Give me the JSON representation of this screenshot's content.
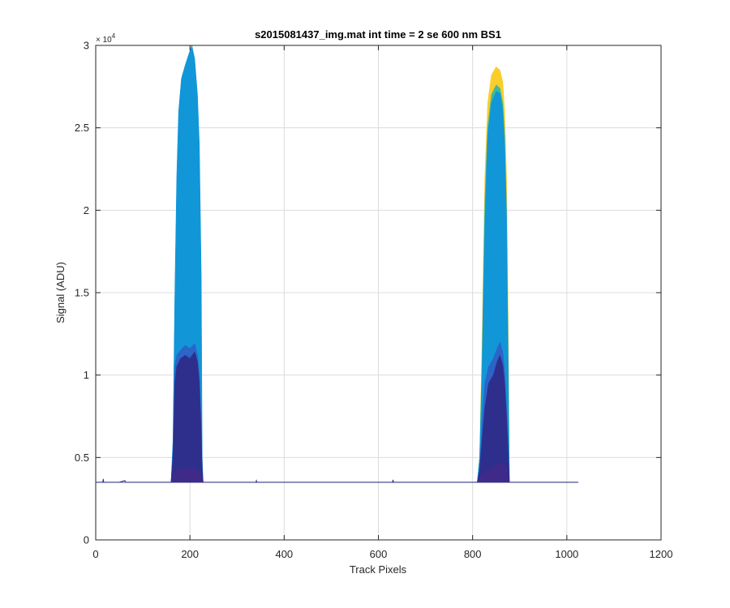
{
  "chart_data": {
    "type": "area",
    "title": "s2015081437_img.mat int time = 2 se  600 nm BS1",
    "xlabel": "Track Pixels",
    "ylabel": "Signal (ADU)",
    "xlim": [
      0,
      1200
    ],
    "ylim": [
      0,
      30000
    ],
    "x_ticks": [
      0,
      200,
      400,
      600,
      800,
      1000,
      1200
    ],
    "y_ticks": [
      0,
      5000,
      10000,
      15000,
      20000,
      25000,
      30000
    ],
    "y_tick_labels": [
      "0",
      "0.5",
      "1",
      "1.5",
      "2",
      "2.5",
      "3"
    ],
    "y_exponent": {
      "base": "× 10",
      "power": "4"
    },
    "grid": true,
    "baseline": 3500,
    "series": [
      {
        "color": "#F9CE2A",
        "points": [
          [
            0,
            3500
          ],
          [
            810,
            3500
          ],
          [
            815,
            5000
          ],
          [
            820,
            12000
          ],
          [
            826,
            22000
          ],
          [
            832,
            26500
          ],
          [
            840,
            28200
          ],
          [
            850,
            28700
          ],
          [
            858,
            28500
          ],
          [
            864,
            27800
          ],
          [
            868,
            26000
          ],
          [
            872,
            22000
          ],
          [
            876,
            12000
          ],
          [
            878,
            3500
          ],
          [
            1024,
            3500
          ]
        ]
      },
      {
        "color": "#3FB99B",
        "points": [
          [
            0,
            3500
          ],
          [
            810,
            3500
          ],
          [
            815,
            5000
          ],
          [
            820,
            11000
          ],
          [
            826,
            20500
          ],
          [
            832,
            25000
          ],
          [
            840,
            27000
          ],
          [
            850,
            27600
          ],
          [
            858,
            27400
          ],
          [
            864,
            26500
          ],
          [
            868,
            24500
          ],
          [
            872,
            20000
          ],
          [
            876,
            10000
          ],
          [
            878,
            3500
          ],
          [
            1024,
            3500
          ]
        ]
      },
      {
        "color": "#1196D8",
        "points": [
          [
            0,
            3500
          ],
          [
            160,
            3500
          ],
          [
            164,
            6000
          ],
          [
            168,
            15000
          ],
          [
            172,
            22000
          ],
          [
            176,
            26000
          ],
          [
            182,
            28000
          ],
          [
            190,
            28800
          ],
          [
            198,
            29500
          ],
          [
            204,
            30000
          ],
          [
            210,
            29200
          ],
          [
            216,
            27000
          ],
          [
            220,
            24000
          ],
          [
            224,
            16000
          ],
          [
            226,
            5000
          ],
          [
            228,
            3500
          ],
          [
            810,
            3500
          ],
          [
            815,
            5000
          ],
          [
            820,
            10000
          ],
          [
            826,
            19000
          ],
          [
            832,
            24500
          ],
          [
            840,
            26500
          ],
          [
            850,
            27200
          ],
          [
            858,
            27100
          ],
          [
            864,
            26000
          ],
          [
            868,
            24000
          ],
          [
            872,
            19500
          ],
          [
            876,
            9000
          ],
          [
            878,
            3500
          ],
          [
            1024,
            3500
          ]
        ]
      },
      {
        "color": "#2C64C8",
        "points": [
          [
            0,
            3500
          ],
          [
            160,
            3500
          ],
          [
            164,
            5500
          ],
          [
            168,
            10500
          ],
          [
            172,
            11200
          ],
          [
            180,
            11500
          ],
          [
            190,
            11800
          ],
          [
            200,
            11600
          ],
          [
            210,
            11900
          ],
          [
            216,
            11200
          ],
          [
            220,
            10000
          ],
          [
            224,
            7000
          ],
          [
            226,
            4500
          ],
          [
            228,
            3500
          ],
          [
            810,
            3500
          ],
          [
            815,
            4500
          ],
          [
            820,
            7000
          ],
          [
            826,
            9500
          ],
          [
            834,
            10500
          ],
          [
            844,
            11000
          ],
          [
            852,
            11600
          ],
          [
            858,
            12000
          ],
          [
            864,
            11400
          ],
          [
            868,
            10200
          ],
          [
            872,
            8000
          ],
          [
            876,
            5500
          ],
          [
            878,
            3500
          ],
          [
            1024,
            3500
          ]
        ]
      },
      {
        "color": "#2E2F8C",
        "points": [
          [
            0,
            3500
          ],
          [
            160,
            3500
          ],
          [
            164,
            5000
          ],
          [
            168,
            9500
          ],
          [
            172,
            10500
          ],
          [
            180,
            11000
          ],
          [
            190,
            11200
          ],
          [
            200,
            11000
          ],
          [
            210,
            11400
          ],
          [
            216,
            10800
          ],
          [
            220,
            9500
          ],
          [
            224,
            6500
          ],
          [
            226,
            4200
          ],
          [
            228,
            3500
          ],
          [
            810,
            3500
          ],
          [
            815,
            4200
          ],
          [
            820,
            6000
          ],
          [
            826,
            8000
          ],
          [
            834,
            9500
          ],
          [
            844,
            10000
          ],
          [
            852,
            10800
          ],
          [
            858,
            11200
          ],
          [
            864,
            10600
          ],
          [
            868,
            9500
          ],
          [
            872,
            7500
          ],
          [
            876,
            5000
          ],
          [
            878,
            3500
          ],
          [
            1024,
            3500
          ]
        ]
      },
      {
        "color": "#3F2A8A",
        "points": [
          [
            0,
            3500
          ],
          [
            160,
            3500
          ],
          [
            166,
            4100
          ],
          [
            180,
            4300
          ],
          [
            200,
            4400
          ],
          [
            215,
            4300
          ],
          [
            226,
            3800
          ],
          [
            228,
            3500
          ],
          [
            810,
            3500
          ],
          [
            818,
            4000
          ],
          [
            840,
            4300
          ],
          [
            860,
            4700
          ],
          [
            872,
            4500
          ],
          [
            878,
            3500
          ],
          [
            1024,
            3500
          ]
        ]
      }
    ],
    "noise_line": {
      "color": "#303085",
      "points": [
        [
          0,
          3500
        ],
        [
          15,
          3500
        ],
        [
          16,
          3700
        ],
        [
          17,
          3500
        ],
        [
          50,
          3500
        ],
        [
          62,
          3600
        ],
        [
          63,
          3500
        ],
        [
          160,
          3500
        ],
        [
          228,
          3500
        ],
        [
          340,
          3500
        ],
        [
          341,
          3600
        ],
        [
          342,
          3500
        ],
        [
          630,
          3500
        ],
        [
          631,
          3650
        ],
        [
          632,
          3500
        ],
        [
          800,
          3500
        ],
        [
          878,
          3500
        ],
        [
          1024,
          3500
        ]
      ]
    }
  }
}
